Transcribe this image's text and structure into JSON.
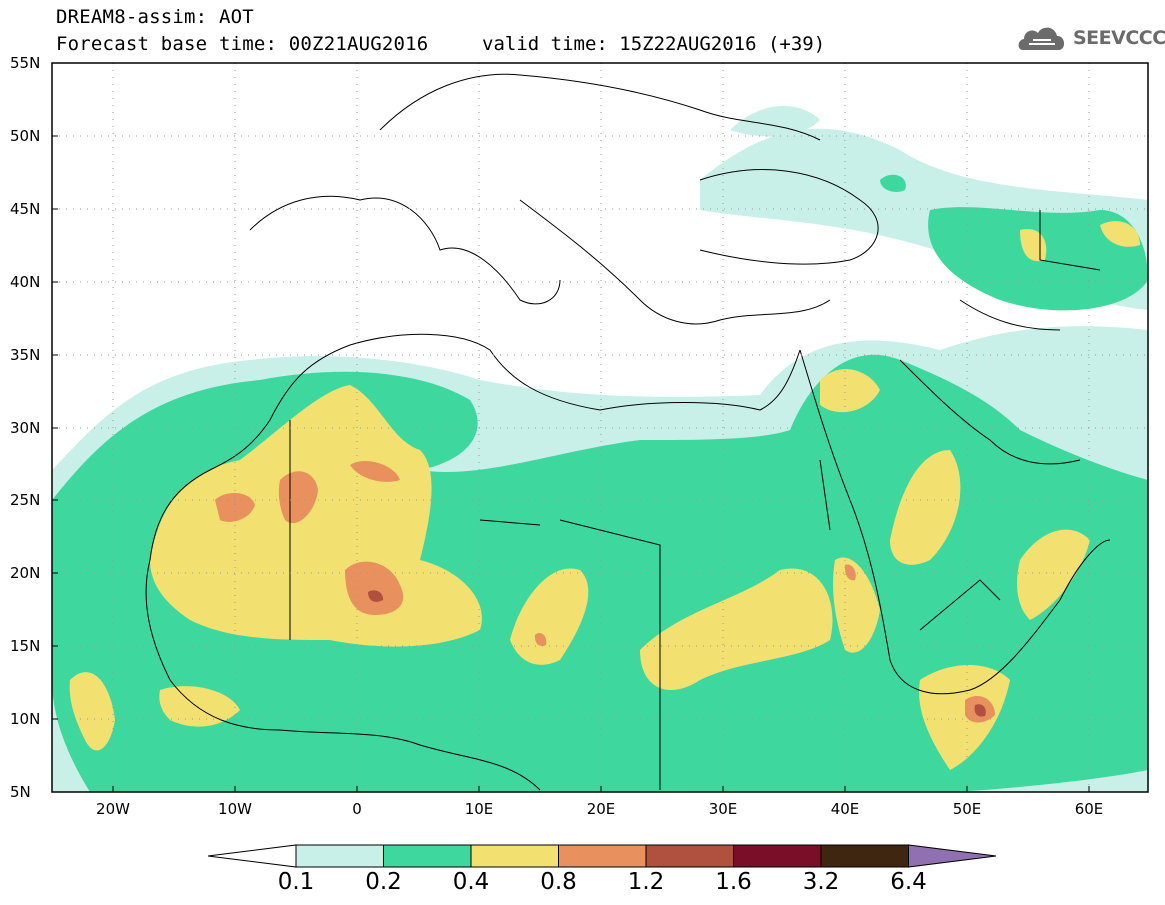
{
  "header": {
    "title_line1": "DREAM8-assim: AOT",
    "title_line2": "Forecast base time: 00Z21AUG2016",
    "valid_time": "valid time: 15Z22AUG2016 (+39)",
    "logo_text": "SEEVCCC",
    "logo_icon": "cloud-icon"
  },
  "map": {
    "lon_range": [
      -25,
      65
    ],
    "lat_range": [
      5,
      55
    ],
    "lat_labels": [
      "55N",
      "50N",
      "45N",
      "40N",
      "35N",
      "30N",
      "25N",
      "20N",
      "15N",
      "10N",
      "5N"
    ],
    "lon_labels": [
      "20W",
      "10W",
      "0",
      "10E",
      "20E",
      "30E",
      "40E",
      "50E",
      "60E"
    ],
    "grid": "dotted"
  },
  "colorbar": {
    "labels": [
      "0.1",
      "0.2",
      "0.4",
      "0.8",
      "1.2",
      "1.6",
      "3.2",
      "6.4"
    ],
    "colors": [
      "#ffffff",
      "#c8f0e8",
      "#3ed89e",
      "#f2e070",
      "#e8905e",
      "#b0503e",
      "#7a0e28",
      "#3e2610",
      "#9070b0"
    ]
  }
}
